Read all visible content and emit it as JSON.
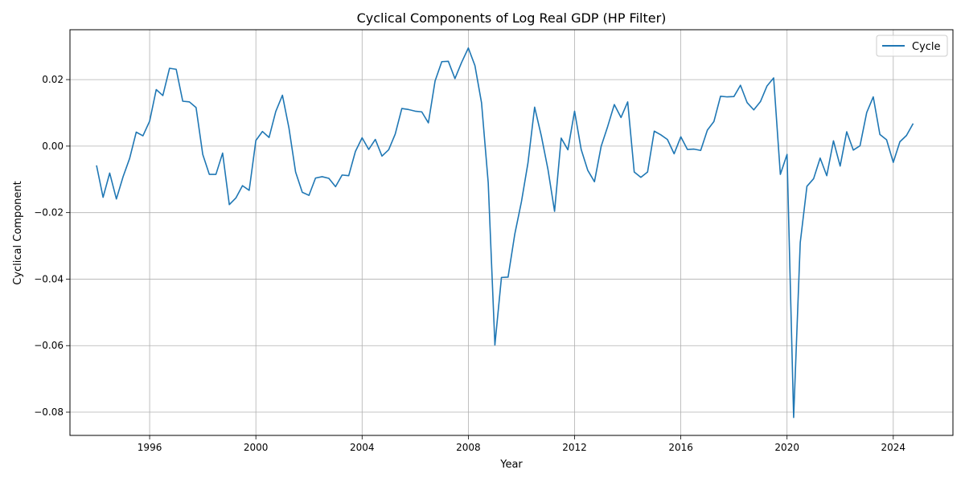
{
  "chart_data": {
    "type": "line",
    "title": "Cyclical Components of Log Real GDP (HP Filter)",
    "xlabel": "Year",
    "ylabel": "Cyclical Component",
    "xlim": [
      "1993-01-01",
      "2026-04-01"
    ],
    "ylim": [
      -0.087,
      0.035
    ],
    "x_ticks": [
      "1996",
      "2000",
      "2004",
      "2008",
      "2012",
      "2016",
      "2020",
      "2024"
    ],
    "y_ticks": [
      -0.08,
      -0.06,
      -0.04,
      -0.02,
      0.0,
      0.02
    ],
    "y_tick_labels": [
      "−0.08",
      "−0.06",
      "−0.04",
      "−0.02",
      "0.00",
      "0.02"
    ],
    "grid": true,
    "legend_position": "top-right",
    "series": [
      {
        "name": "Cycle",
        "color": "#1f77b4",
        "x": [
          "1994-01-01",
          "1994-04-01",
          "1994-07-01",
          "1994-10-01",
          "1995-01-01",
          "1995-04-01",
          "1995-07-01",
          "1995-10-01",
          "1996-01-01",
          "1996-04-01",
          "1996-07-01",
          "1996-10-01",
          "1997-01-01",
          "1997-04-01",
          "1997-07-01",
          "1997-10-01",
          "1998-01-01",
          "1998-04-01",
          "1998-07-01",
          "1998-10-01",
          "1999-01-01",
          "1999-04-01",
          "1999-07-01",
          "1999-10-01",
          "2000-01-01",
          "2000-04-01",
          "2000-07-01",
          "2000-10-01",
          "2001-01-01",
          "2001-04-01",
          "2001-07-01",
          "2001-10-01",
          "2002-01-01",
          "2002-04-01",
          "2002-07-01",
          "2002-10-01",
          "2003-01-01",
          "2003-04-01",
          "2003-07-01",
          "2003-10-01",
          "2004-01-01",
          "2004-04-01",
          "2004-07-01",
          "2004-10-01",
          "2005-01-01",
          "2005-04-01",
          "2005-07-01",
          "2005-10-01",
          "2006-01-01",
          "2006-04-01",
          "2006-07-01",
          "2006-10-01",
          "2007-01-01",
          "2007-04-01",
          "2007-07-01",
          "2007-10-01",
          "2008-01-01",
          "2008-04-01",
          "2008-07-01",
          "2008-10-01",
          "2009-01-01",
          "2009-04-01",
          "2009-07-01",
          "2009-10-01",
          "2010-01-01",
          "2010-04-01",
          "2010-07-01",
          "2010-10-01",
          "2011-01-01",
          "2011-04-01",
          "2011-07-01",
          "2011-10-01",
          "2012-01-01",
          "2012-04-01",
          "2012-07-01",
          "2012-10-01",
          "2013-01-01",
          "2013-04-01",
          "2013-07-01",
          "2013-10-01",
          "2014-01-01",
          "2014-04-01",
          "2014-07-01",
          "2014-10-01",
          "2015-01-01",
          "2015-04-01",
          "2015-07-01",
          "2015-10-01",
          "2016-01-01",
          "2016-04-01",
          "2016-07-01",
          "2016-10-01",
          "2017-01-01",
          "2017-04-01",
          "2017-07-01",
          "2017-10-01",
          "2018-01-01",
          "2018-04-01",
          "2018-07-01",
          "2018-10-01",
          "2019-01-01",
          "2019-04-01",
          "2019-07-01",
          "2019-10-01",
          "2020-01-01",
          "2020-04-01",
          "2020-07-01",
          "2020-10-01",
          "2021-01-01",
          "2021-04-01",
          "2021-07-01",
          "2021-10-01",
          "2022-01-01",
          "2022-04-01",
          "2022-07-01",
          "2022-10-01",
          "2023-01-01",
          "2023-04-01",
          "2023-07-01",
          "2023-10-01",
          "2024-01-01",
          "2024-04-01",
          "2024-07-01",
          "2024-10-01"
        ],
        "y": [
          -0.0058,
          -0.0154,
          -0.0081,
          -0.0159,
          -0.0092,
          -0.0037,
          0.0042,
          0.0031,
          0.0075,
          0.017,
          0.0152,
          0.0234,
          0.0231,
          0.0135,
          0.0133,
          0.0116,
          -0.0025,
          -0.0085,
          -0.0085,
          -0.0021,
          -0.0176,
          -0.0156,
          -0.0119,
          -0.0133,
          0.0017,
          0.0044,
          0.0026,
          0.0104,
          0.0153,
          0.0054,
          -0.0078,
          -0.0139,
          -0.0148,
          -0.0096,
          -0.0092,
          -0.0097,
          -0.0122,
          -0.0087,
          -0.0089,
          -0.0016,
          0.0025,
          -0.001,
          0.002,
          -0.003,
          -0.0011,
          0.0036,
          0.0113,
          0.011,
          0.0105,
          0.0103,
          0.007,
          0.0196,
          0.0254,
          0.0255,
          0.0203,
          0.0252,
          0.0295,
          0.0242,
          0.013,
          -0.011,
          -0.0598,
          -0.0395,
          -0.0394,
          -0.0265,
          -0.0167,
          -0.005,
          0.0117,
          0.0031,
          -0.0071,
          -0.0196,
          0.0024,
          -0.0011,
          0.0105,
          -0.001,
          -0.0073,
          -0.0107,
          -0.0001,
          0.0059,
          0.0125,
          0.0086,
          0.0133,
          -0.0078,
          -0.0094,
          -0.0078,
          0.0045,
          0.0034,
          0.002,
          -0.0023,
          0.0028,
          -0.001,
          -0.0009,
          -0.0013,
          0.0048,
          0.0074,
          0.015,
          0.0148,
          0.0149,
          0.0183,
          0.0131,
          0.0109,
          0.0134,
          0.0181,
          0.0205,
          -0.0085,
          -0.0025,
          -0.0816,
          -0.029,
          -0.0121,
          -0.0098,
          -0.0036,
          -0.0089,
          0.0016,
          -0.006,
          0.0043,
          -0.0012,
          0.0001,
          0.0101,
          0.0148,
          0.0035,
          0.0019,
          -0.0049,
          0.0013,
          0.0032,
          0.0068
        ]
      }
    ]
  }
}
